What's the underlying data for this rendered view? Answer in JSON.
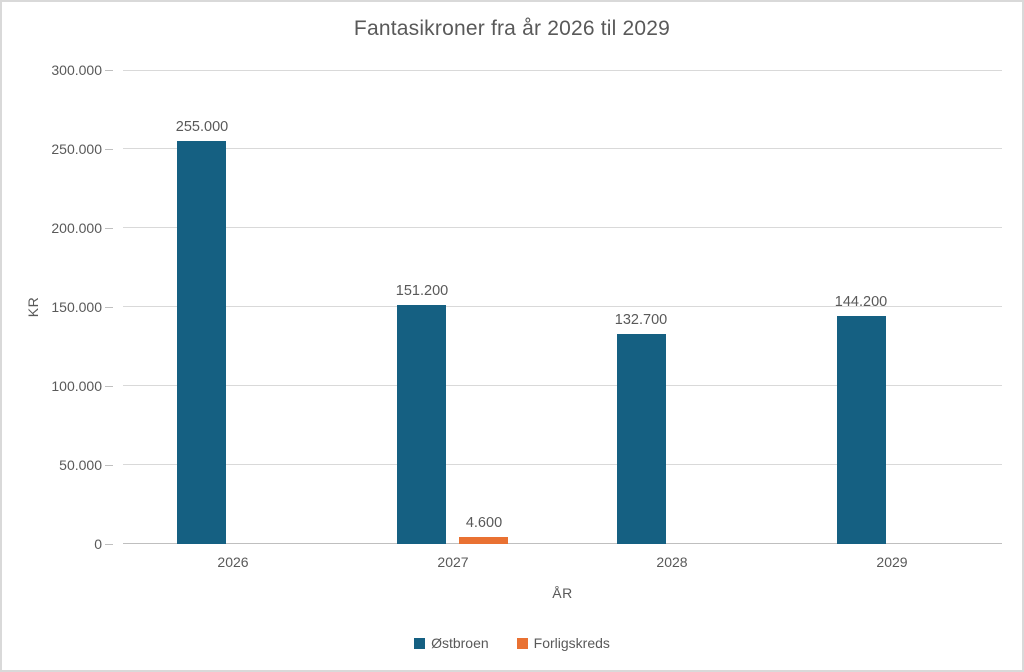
{
  "chart": {
    "title": "Fantasikroner fra år 2026 til 2029",
    "y_axis_title": "KR",
    "x_axis_title": "ÅR"
  },
  "chart_data": {
    "type": "bar",
    "title": "Fantasikroner fra år 2026 til 2029",
    "xlabel": "ÅR",
    "ylabel": "KR",
    "categories": [
      "2026",
      "2027",
      "2028",
      "2029"
    ],
    "series": [
      {
        "name": "Østbroen",
        "color": "#156082",
        "values": [
          255000,
          151200,
          132700,
          144200
        ],
        "data_labels": [
          "255.000",
          "151.200",
          "132.700",
          "144.200"
        ]
      },
      {
        "name": "Forligskreds",
        "color": "#E97132",
        "values": [
          0,
          4600,
          0,
          0
        ],
        "data_labels": [
          "",
          "4.600",
          "",
          ""
        ]
      }
    ],
    "ylim": [
      0,
      300000
    ],
    "ytick_step": 50000,
    "ytick_labels": [
      "0",
      "50.000",
      "100.000",
      "150.000",
      "200.000",
      "250.000",
      "300.000"
    ],
    "grid": true,
    "legend_position": "bottom",
    "gridline_color": "#D9D9D9",
    "text_color": "#595959"
  }
}
